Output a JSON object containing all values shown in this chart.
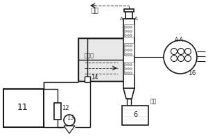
{
  "bg_color": "#ffffff",
  "lc": "#1a1a1a",
  "dc": "#444444",
  "gray_fill": "#e8e8e8",
  "labels": {
    "exhaust": "尾气",
    "flue_gas": "烟道气",
    "outlet": "出水",
    "n11": "11",
    "n12": "12",
    "n13": "13",
    "n14": "14",
    "n6": "6",
    "n16": "16",
    "aa": "A-A"
  },
  "figsize": [
    3.0,
    2.0
  ],
  "dpi": 100
}
